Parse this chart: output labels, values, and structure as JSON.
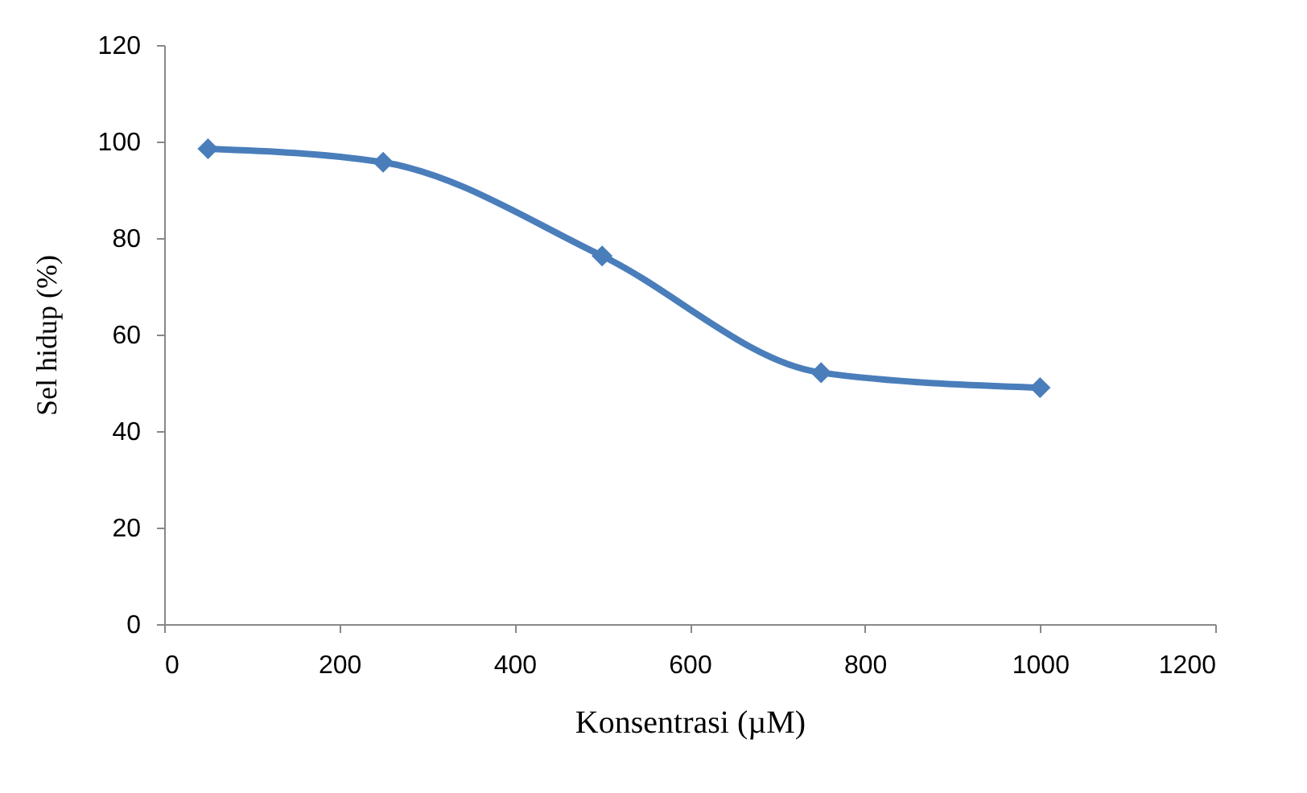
{
  "chart_data": {
    "type": "line",
    "xlabel": "Konsentrasi (µM)",
    "ylabel": "Sel hidup (%)",
    "x": [
      50,
      250,
      500,
      750,
      1000
    ],
    "series": [
      {
        "color": "#4a7ebb",
        "values": [
          98.5,
          95.7,
          76.3,
          52.1,
          49.0
        ]
      }
    ],
    "xlim": [
      0,
      1200
    ],
    "xticks": [
      0,
      200,
      400,
      600,
      800,
      1000,
      1200
    ],
    "ylim": [
      0,
      120
    ],
    "yticks": [
      0,
      20,
      40,
      60,
      80,
      100,
      120
    ],
    "grid": false,
    "legend": false,
    "marker": "diamond",
    "line_style": "solid"
  }
}
